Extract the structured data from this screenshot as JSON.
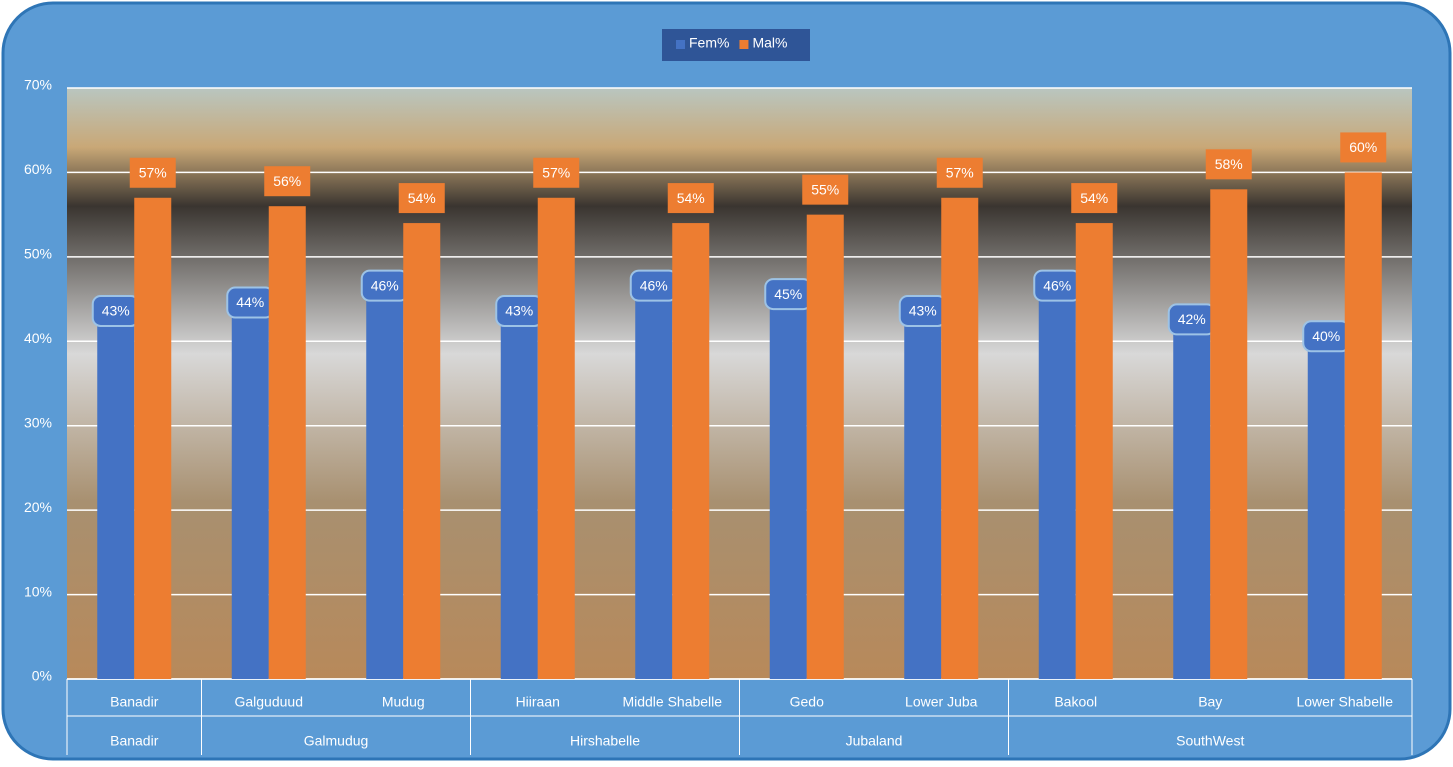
{
  "chart_data": {
    "type": "bar",
    "groups": [
      {
        "name": "Banadir",
        "categories": [
          "Banadir"
        ]
      },
      {
        "name": "Galmudug",
        "categories": [
          "Galguduud",
          "Mudug"
        ]
      },
      {
        "name": "Hirshabelle",
        "categories": [
          "Hiiraan",
          "Middle Shabelle"
        ]
      },
      {
        "name": "Jubaland",
        "categories": [
          "Gedo",
          "Lower Juba"
        ]
      },
      {
        "name": "SouthWest",
        "categories": [
          "Bakool",
          "Bay",
          "Lower Shabelle"
        ]
      }
    ],
    "series": [
      {
        "name": "Fem%",
        "color": "#4472c4",
        "values": [
          43,
          44,
          46,
          43,
          46,
          45,
          43,
          46,
          42,
          40
        ],
        "value_labels": [
          "43%",
          "44%",
          "46%",
          "43%",
          "46%",
          "45%",
          "43%",
          "46%",
          "42%",
          "40%"
        ]
      },
      {
        "name": "Mal%",
        "color": "#ed7d31",
        "values": [
          57,
          56,
          54,
          57,
          54,
          55,
          57,
          54,
          58,
          60
        ],
        "value_labels": [
          "57%",
          "56%",
          "54%",
          "57%",
          "54%",
          "55%",
          "57%",
          "54%",
          "58%",
          "60%"
        ]
      }
    ],
    "ylim": [
      0,
      70
    ],
    "yticks": [
      {
        "value": 0,
        "label": "0%"
      },
      {
        "value": 10,
        "label": "10%"
      },
      {
        "value": 20,
        "label": "20%"
      },
      {
        "value": 30,
        "label": "30%"
      },
      {
        "value": 40,
        "label": "40%"
      },
      {
        "value": 50,
        "label": "50%"
      },
      {
        "value": 60,
        "label": "60%"
      },
      {
        "value": 70,
        "label": "70%"
      }
    ],
    "grid": true,
    "legend": "top"
  }
}
